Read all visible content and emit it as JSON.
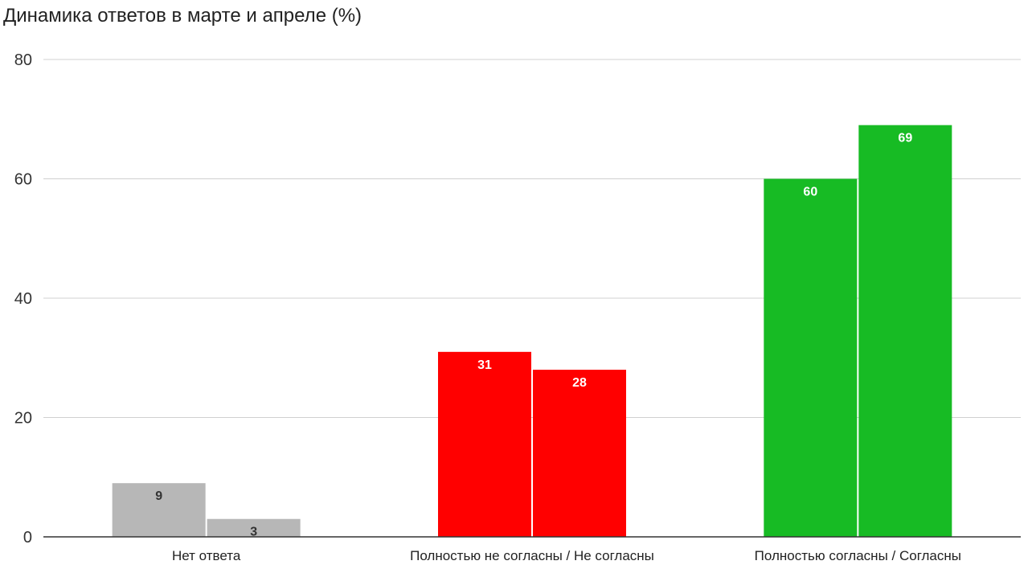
{
  "chart_data": {
    "type": "bar",
    "title": "Динамика ответов в марте и апреле (%)",
    "xlabel": "",
    "ylabel": "",
    "ylim": [
      0,
      80
    ],
    "yticks": [
      0,
      20,
      40,
      60,
      80
    ],
    "grid": true,
    "legend": "none",
    "categories": [
      "Нет ответа",
      "Полностью не согласны / Не согласны",
      "Полностью согласны / Согласны"
    ],
    "series": [
      {
        "values": [
          9,
          31,
          60
        ]
      },
      {
        "values": [
          3,
          28,
          69
        ]
      }
    ],
    "category_colors": [
      "#b7b7b7",
      "#ff0000",
      "#17bb24"
    ],
    "label_colors": [
      "#333333",
      "#ffffff",
      "#ffffff"
    ]
  }
}
